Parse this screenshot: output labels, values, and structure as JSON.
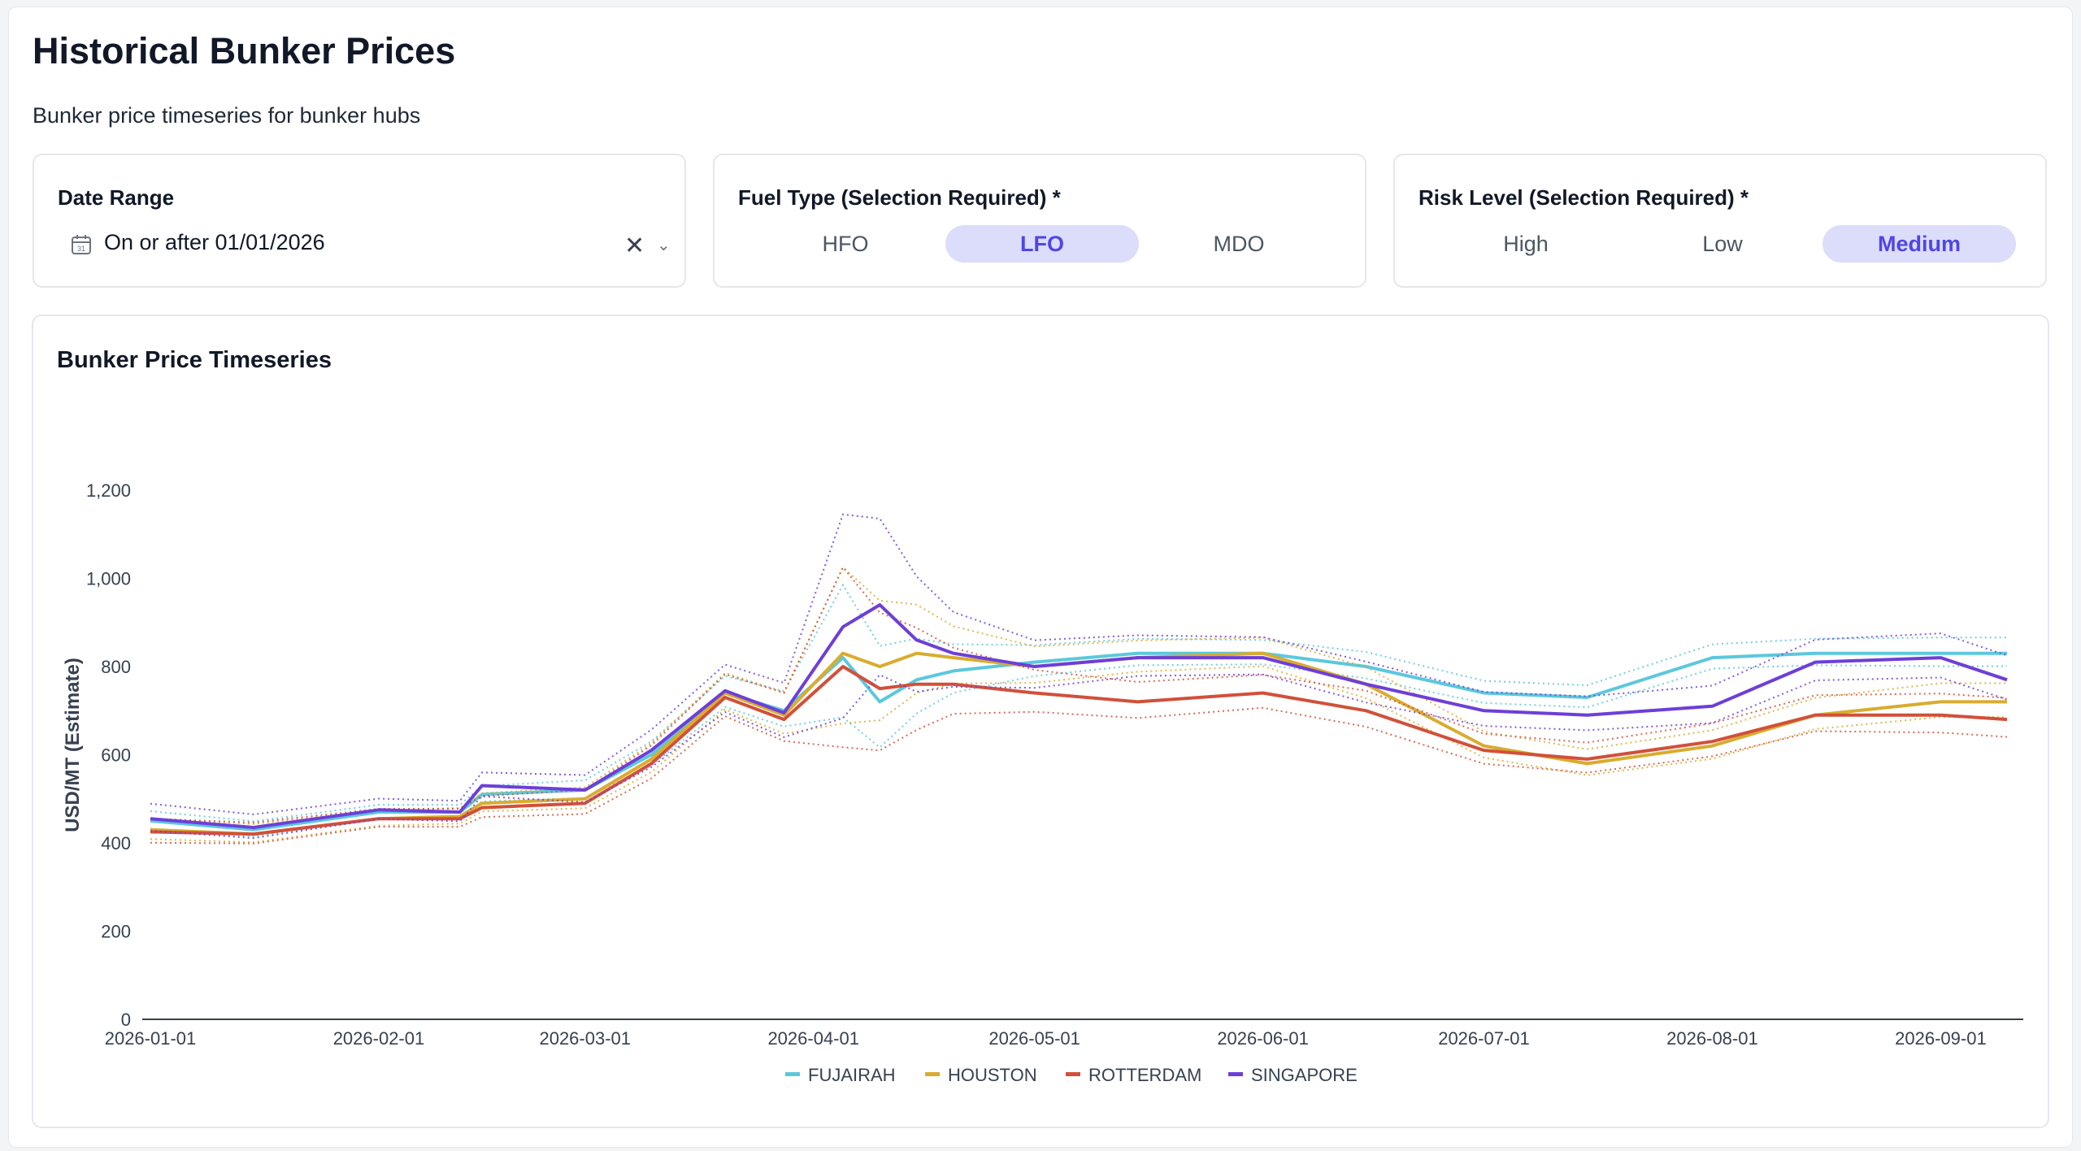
{
  "header": {
    "title": "Historical Bunker Prices",
    "subtitle": "Bunker price timeseries for bunker hubs"
  },
  "filters": {
    "date_range": {
      "label": "Date Range",
      "value": "On or after 01/01/2026",
      "icon": "calendar-icon",
      "clear_icon": "close-icon",
      "dropdown_icon": "chevron-down-icon"
    },
    "fuel_type": {
      "label": "Fuel Type (Selection Required) *",
      "options": [
        "HFO",
        "LFO",
        "MDO"
      ],
      "selected": "LFO"
    },
    "risk_level": {
      "label": "Risk Level (Selection Required) *",
      "options": [
        "High",
        "Low",
        "Medium"
      ],
      "selected": "Medium"
    }
  },
  "colors": {
    "accent": "#4f46e5",
    "accent_bg": "#dcdcfb",
    "FUJAIRAH": "#5bc8dc",
    "HOUSTON": "#d9ac2e",
    "ROTTERDAM": "#d1503a",
    "SINGAPORE": "#6d3fd8"
  },
  "chart_data": {
    "type": "line",
    "title": "Bunker Price Timeseries",
    "ylabel": "USD/MT (Estimate)",
    "xlabel": "",
    "ylim": [
      0,
      1200
    ],
    "yticks": [
      0,
      200,
      400,
      600,
      800,
      "1,000",
      "1,200"
    ],
    "xticks": [
      "2026-01-01",
      "2026-02-01",
      "2026-03-01",
      "2026-04-01",
      "2026-05-01",
      "2026-06-01",
      "2026-07-01",
      "2026-08-01",
      "2026-09-01"
    ],
    "grid": false,
    "legend_position": "bottom",
    "band_style": "dotted upper/lower bounds per series",
    "x": [
      "2026-01-01",
      "2026-01-15",
      "2026-02-01",
      "2026-02-12",
      "2026-02-15",
      "2026-03-01",
      "2026-03-10",
      "2026-03-20",
      "2026-03-28",
      "2026-04-05",
      "2026-04-10",
      "2026-04-15",
      "2026-04-20",
      "2026-05-01",
      "2026-05-15",
      "2026-06-01",
      "2026-06-15",
      "2026-07-01",
      "2026-07-15",
      "2026-08-01",
      "2026-08-15",
      "2026-09-01",
      "2026-09-10"
    ],
    "series": [
      {
        "name": "FUJAIRAH",
        "values": [
          450,
          430,
          470,
          470,
          510,
          520,
          600,
          740,
          700,
          820,
          720,
          770,
          790,
          810,
          830,
          830,
          800,
          740,
          730,
          820,
          830,
          830,
          830
        ]
      },
      {
        "name": "HOUSTON",
        "values": [
          430,
          420,
          455,
          460,
          490,
          500,
          590,
          740,
          690,
          830,
          800,
          830,
          820,
          800,
          820,
          830,
          760,
          620,
          580,
          620,
          690,
          720,
          720
        ]
      },
      {
        "name": "ROTTERDAM",
        "values": [
          425,
          420,
          455,
          455,
          480,
          490,
          580,
          730,
          680,
          800,
          750,
          760,
          760,
          740,
          720,
          740,
          700,
          610,
          590,
          630,
          690,
          690,
          680
        ]
      },
      {
        "name": "SINGAPORE",
        "values": [
          455,
          435,
          475,
          470,
          530,
          520,
          610,
          745,
          695,
          890,
          940,
          860,
          830,
          800,
          820,
          820,
          760,
          700,
          690,
          710,
          810,
          820,
          770
        ]
      }
    ],
    "band_width": [
      40,
      35,
      30,
      30,
      35,
      40,
      55,
      70,
      80,
      300,
      230,
      170,
      110,
      70,
      60,
      55,
      60,
      50,
      50,
      55,
      60,
      65,
      65
    ]
  }
}
